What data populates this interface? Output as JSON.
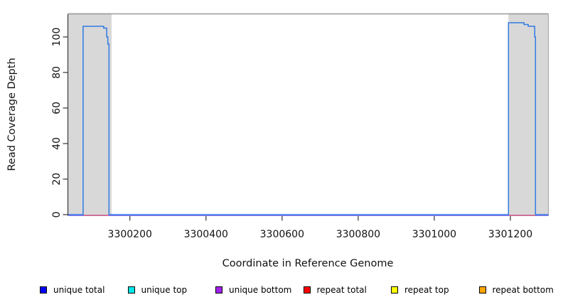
{
  "chart_data": {
    "type": "line",
    "title": "",
    "xlabel": "Coordinate in Reference Genome",
    "ylabel": "Read Coverage Depth",
    "xlim": [
      3300038,
      3301300
    ],
    "ylim": [
      0,
      113
    ],
    "x_ticks": [
      3300200,
      3300400,
      3300600,
      3300800,
      3301000,
      3301200
    ],
    "x_tick_labels": [
      "3300200",
      "3300400",
      "3300600",
      "3300800",
      "3301000",
      "3301200"
    ],
    "y_ticks": [
      0,
      20,
      40,
      60,
      80,
      100
    ],
    "y_tick_labels": [
      "0",
      "20",
      "40",
      "60",
      "80",
      "100"
    ],
    "grid": false,
    "legend_position": "bottom",
    "shaded_regions": [
      {
        "name": "left-target-region",
        "x0": 3300038,
        "x1": 3300152,
        "color": "#d8d8d8"
      },
      {
        "name": "right-target-region",
        "x0": 3301195,
        "x1": 3301300,
        "color": "#d8d8d8"
      }
    ],
    "series": [
      {
        "name": "unique bottom",
        "color": "#8468EF",
        "width": 1.3,
        "y_offset": 1.4,
        "points": [
          [
            3300038,
            0
          ],
          [
            3301300,
            0
          ]
        ]
      },
      {
        "name": "repeat total",
        "color": "#D96080",
        "width": 1.5,
        "y_offset": 1.0,
        "segments": [
          [
            [
              3300077,
              0
            ],
            [
              3300145,
              0
            ]
          ],
          [
            [
              3301195,
              0
            ],
            [
              3301266,
              0
            ]
          ]
        ]
      },
      {
        "name": "unique total",
        "color": "#2F7BE3",
        "width": 1.5,
        "y_offset": 0,
        "points": [
          [
            3300038,
            0
          ],
          [
            3300077,
            0
          ],
          [
            3300077,
            106
          ],
          [
            3300131,
            106
          ],
          [
            3300131,
            105
          ],
          [
            3300139,
            105
          ],
          [
            3300139,
            100
          ],
          [
            3300142,
            100
          ],
          [
            3300142,
            96
          ],
          [
            3300145,
            96
          ],
          [
            3300145,
            0
          ],
          [
            3301195,
            0
          ],
          [
            3301195,
            108
          ],
          [
            3301236,
            108
          ],
          [
            3301236,
            107
          ],
          [
            3301247,
            107
          ],
          [
            3301247,
            106
          ],
          [
            3301264,
            106
          ],
          [
            3301264,
            100
          ],
          [
            3301266,
            100
          ],
          [
            3301266,
            0
          ],
          [
            3301300,
            0
          ]
        ]
      }
    ],
    "legend": [
      {
        "label": "unique total",
        "color": "#0000FF"
      },
      {
        "label": "unique top",
        "color": "#00E8E8"
      },
      {
        "label": "unique bottom",
        "color": "#A020F0"
      },
      {
        "label": "repeat total",
        "color": "#FF0000"
      },
      {
        "label": "repeat top",
        "color": "#FFFF00"
      },
      {
        "label": "repeat bottom",
        "color": "#FFA500"
      }
    ]
  }
}
